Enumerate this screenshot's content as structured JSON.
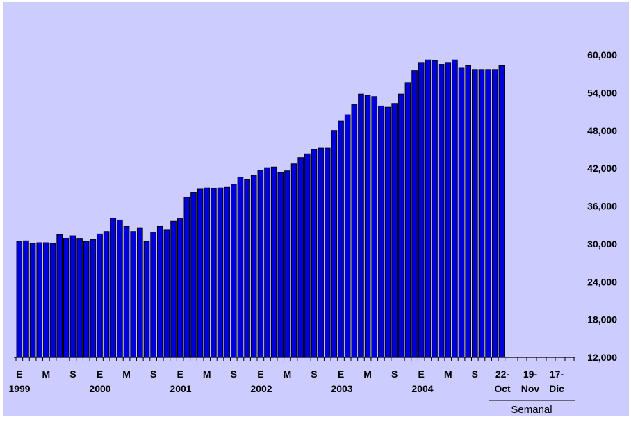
{
  "chart_data": {
    "type": "bar",
    "background": "#ccccff",
    "bar_color": "#0000dd",
    "bar_stroke": "#000000",
    "ylim": [
      12000,
      60000
    ],
    "y_ticks": [
      12000,
      18000,
      24000,
      30000,
      36000,
      42000,
      48000,
      54000,
      60000
    ],
    "y_tick_labels": [
      "12,000",
      "18,000",
      "24,000",
      "30,000",
      "36,000",
      "42,000",
      "48,000",
      "54,000",
      "60,000"
    ],
    "monthly_values": [
      30400,
      30500,
      30100,
      30200,
      30200,
      30100,
      31500,
      30900,
      31300,
      30800,
      30400,
      30700,
      31600,
      32000,
      34100,
      33800,
      32800,
      32000,
      32500,
      30400,
      31900,
      32800,
      32200,
      33600,
      34000,
      37400,
      38200,
      38700,
      38900,
      38800,
      38900,
      39000,
      39500,
      40600,
      40200,
      40900,
      41700,
      42100,
      42200,
      41300,
      41600,
      42700,
      43700,
      44300,
      45000,
      45200,
      45200,
      48000,
      49500,
      50500,
      52100,
      53800,
      53600,
      53400,
      51900,
      51700,
      52300,
      53800,
      55600,
      57500,
      58800,
      59200,
      59100,
      58500,
      58800,
      59200,
      57900,
      58300,
      57700,
      57700,
      57700,
      57700,
      58300
    ],
    "monthly_tick_labels": [
      "E",
      "M",
      "S",
      "E",
      "M",
      "S",
      "E",
      "M",
      "S",
      "E",
      "M",
      "S",
      "E",
      "M",
      "S",
      "E",
      "M",
      "S"
    ],
    "year_labels": [
      "1999",
      "2000",
      "2001",
      "2002",
      "2003",
      "2004"
    ],
    "weekly_tick_labels": [
      {
        "top": "22-",
        "bottom": "Oct"
      },
      {
        "top": "19-",
        "bottom": "Nov"
      },
      {
        "top": "17-",
        "bottom": "Dic"
      }
    ],
    "weekly_section_label": "Semanal"
  }
}
